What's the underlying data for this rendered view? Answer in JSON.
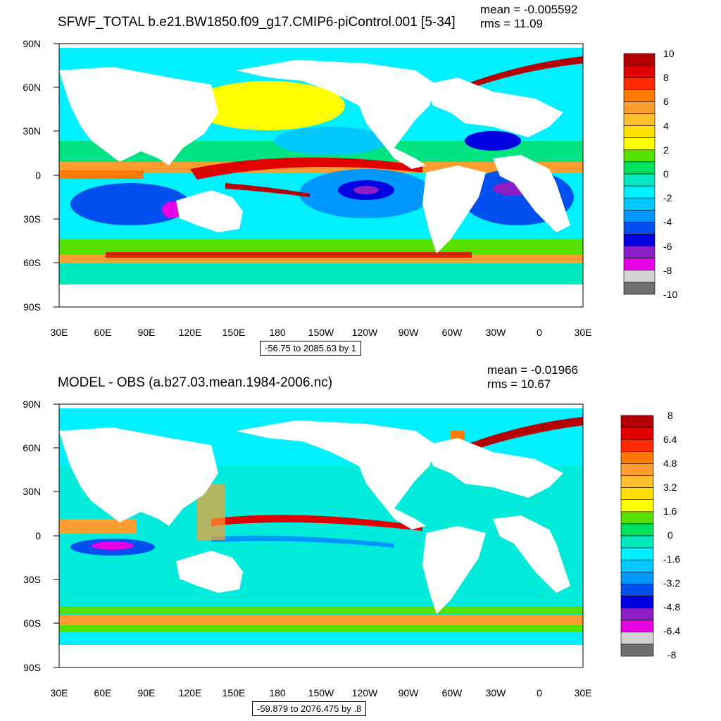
{
  "panels": [
    {
      "title": "SFWF_TOTAL b.e21.BW1850.f09_g17.CMIP6-piControl.001 [5-34]",
      "mean": "mean = -0.005592",
      "rms": "rms = 11.09",
      "range": "-56.75 to 2085.63 by 1",
      "lat_labels": [
        "90N",
        "60N",
        "30N",
        "0",
        "30S",
        "60S",
        "90S"
      ],
      "lon_labels": [
        "30E",
        "60E",
        "90E",
        "120E",
        "150E",
        "180",
        "150W",
        "120W",
        "90W",
        "60W",
        "30W",
        "0",
        "30E"
      ],
      "colorbar_labels": [
        "10",
        "8",
        "6",
        "4",
        "2",
        "0",
        "-2",
        "-4",
        "-6",
        "-8",
        "-10"
      ],
      "colorbar_colors": [
        "#b40000",
        "#e00000",
        "#ff2a00",
        "#ff7a00",
        "#ff9e30",
        "#ffc030",
        "#ffe000",
        "#ffff00",
        "#55e000",
        "#00e060",
        "#00e8c0",
        "#00f0ff",
        "#00c8ff",
        "#0096ff",
        "#0050f0",
        "#0000e0",
        "#8c1ec8",
        "#e600e6",
        "#d2d2d2",
        "#6e6e6e"
      ]
    },
    {
      "title": "MODEL - OBS (a.b27.03.mean.1984-2006.nc)",
      "mean": "mean = -0.01966",
      "rms": "rms = 10.67",
      "range": "-59.879 to 2076.475 by .8",
      "lat_labels": [
        "90N",
        "60N",
        "30N",
        "0",
        "30S",
        "60S",
        "90S"
      ],
      "lon_labels": [
        "30E",
        "60E",
        "90E",
        "120E",
        "150E",
        "180",
        "150W",
        "120W",
        "90W",
        "60W",
        "30W",
        "0",
        "30E"
      ],
      "colorbar_labels": [
        "8",
        "6.4",
        "4.8",
        "3.2",
        "1.6",
        "0",
        "-1.6",
        "-3.2",
        "-4.8",
        "-6.4",
        "-8"
      ],
      "colorbar_colors": [
        "#b40000",
        "#e00000",
        "#ff2a00",
        "#ff7a00",
        "#ff9e30",
        "#ffc030",
        "#ffe000",
        "#ffff00",
        "#55e000",
        "#00e060",
        "#00e8c0",
        "#00f0ff",
        "#00c8ff",
        "#0096ff",
        "#0050f0",
        "#0000e0",
        "#8c1ec8",
        "#e600e6",
        "#d2d2d2",
        "#6e6e6e"
      ]
    }
  ]
}
